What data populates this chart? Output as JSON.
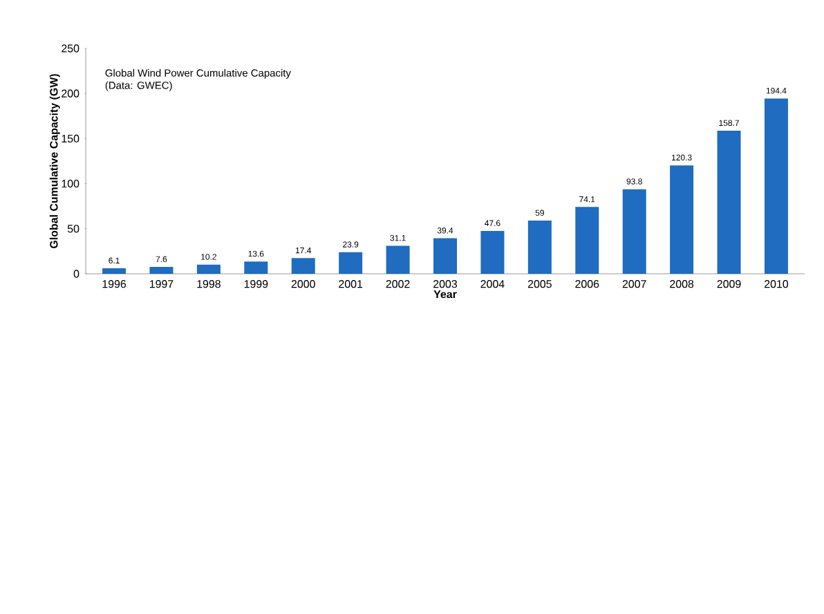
{
  "chart_data": {
    "type": "bar",
    "title": "Global Wind Power Cumulative Capacity",
    "subtitle": "(Data: GWEC)",
    "xlabel": "Year",
    "ylabel": "Global Cumulative Capacity (GW)",
    "categories": [
      "1996",
      "1997",
      "1998",
      "1999",
      "2000",
      "2001",
      "2002",
      "2003",
      "2004",
      "2005",
      "2006",
      "2007",
      "2008",
      "2009",
      "2010"
    ],
    "values": [
      6.1,
      7.6,
      10.2,
      13.6,
      17.4,
      23.9,
      31.1,
      39.4,
      47.6,
      59,
      74.1,
      93.8,
      120.3,
      158.7,
      194.4
    ],
    "color": "#1f6cc0",
    "ylim": [
      0,
      250
    ],
    "yticks": [
      0,
      50,
      100,
      150,
      200,
      250
    ],
    "data_labels": true,
    "grid": false
  }
}
